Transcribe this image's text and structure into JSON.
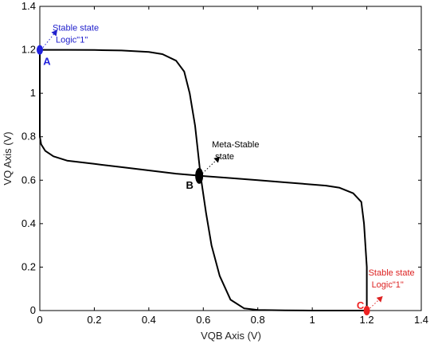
{
  "chart_data": {
    "type": "line",
    "title": "",
    "xlabel": "VQB Axis (V)",
    "ylabel": "VQ Axis (V)",
    "xlim": [
      0,
      1.4
    ],
    "ylim": [
      0,
      1.4
    ],
    "grid": false,
    "legend": "none",
    "x_ticks": [
      "0",
      "0.2",
      "0.4",
      "0.6",
      "0.8",
      "1",
      "1.2",
      "1.4"
    ],
    "y_ticks": [
      "0",
      "0.2",
      "0.4",
      "0.6",
      "0.8",
      "1",
      "1.2",
      "1.4"
    ],
    "series": [
      {
        "color": "#000000",
        "x": [
          0,
          0.1,
          0.2,
          0.3,
          0.4,
          0.45,
          0.5,
          0.53,
          0.55,
          0.57,
          0.59,
          0.61,
          0.63,
          0.66,
          0.7,
          0.75,
          0.8,
          0.9,
          1.0,
          1.1,
          1.2
        ],
        "y": [
          1.2,
          1.2,
          1.199,
          1.197,
          1.19,
          1.18,
          1.15,
          1.1,
          1.0,
          0.85,
          0.62,
          0.45,
          0.3,
          0.16,
          0.05,
          0.01,
          0.003,
          0.001,
          0.0,
          0.0,
          0.0
        ]
      },
      {
        "color": "#000000",
        "x": [
          0,
          0.0,
          0.0,
          0.005,
          0.02,
          0.05,
          0.1,
          0.2,
          0.3,
          0.4,
          0.5,
          0.59,
          0.7,
          0.8,
          0.9,
          1.0,
          1.05,
          1.1,
          1.15,
          1.18,
          1.19,
          1.2,
          1.2
        ],
        "y": [
          1.2,
          1.0,
          0.8,
          0.765,
          0.735,
          0.71,
          0.69,
          0.675,
          0.66,
          0.645,
          0.63,
          0.62,
          0.61,
          0.6,
          0.59,
          0.58,
          0.575,
          0.565,
          0.54,
          0.5,
          0.4,
          0.2,
          0.0
        ]
      }
    ],
    "points": [
      {
        "label": "A",
        "x": 0.0,
        "y": 1.2,
        "color": "#2020dd",
        "size": "small"
      },
      {
        "label": "B",
        "x": 0.585,
        "y": 0.62,
        "color": "#000000",
        "size": "large"
      },
      {
        "label": "C",
        "x": 1.2,
        "y": 0.0,
        "color": "#ee2222",
        "size": "small"
      }
    ],
    "annotations": [
      {
        "point": "A",
        "text_lines": [
          "Stable state",
          "Logic\"1\""
        ],
        "color": "#2020cc"
      },
      {
        "point": "B",
        "text_lines": [
          "Meta-Stable",
          "state"
        ],
        "color": "#000000"
      },
      {
        "point": "C",
        "text_lines": [
          "Stable state",
          "Logic\"1\""
        ],
        "color": "#dd2222"
      }
    ]
  }
}
